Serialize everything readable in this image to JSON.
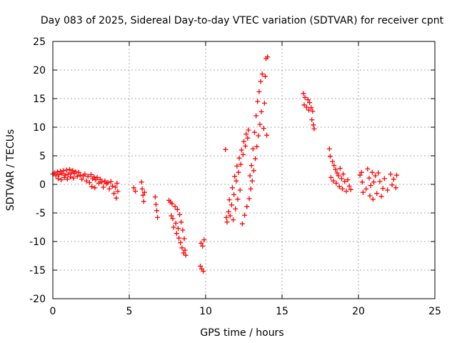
{
  "chart_data": {
    "type": "scatter",
    "title": "Day 083 of 2025, Sidereal Day-to-day VTEC variation (SDTVAR) for receiver cpnt",
    "xlabel": "GPS time / hours",
    "ylabel": "SDTVAR / TECUs",
    "xlim": [
      0,
      25
    ],
    "ylim": [
      -20,
      25
    ],
    "xticks": [
      0,
      5,
      10,
      15,
      20,
      25
    ],
    "yticks": [
      -20,
      -15,
      -10,
      -5,
      0,
      5,
      10,
      15,
      20,
      25
    ],
    "xtick_labels": [
      "0",
      "5",
      "10",
      "15",
      "20",
      "25"
    ],
    "ytick_labels": [
      "-20",
      "-15",
      "-10",
      "-5",
      "0",
      "5",
      "10",
      "15",
      "20",
      "25"
    ],
    "grid": true,
    "marker": "+",
    "color": "#ff0000",
    "series": [
      {
        "name": "SDTVAR",
        "points": [
          [
            0.0,
            1.8
          ],
          [
            0.1,
            2.0
          ],
          [
            0.2,
            1.5
          ],
          [
            0.3,
            2.2
          ],
          [
            0.35,
            1.0
          ],
          [
            0.4,
            1.7
          ],
          [
            0.5,
            2.3
          ],
          [
            0.55,
            0.8
          ],
          [
            0.6,
            1.9
          ],
          [
            0.7,
            2.4
          ],
          [
            0.75,
            1.2
          ],
          [
            0.8,
            1.6
          ],
          [
            0.9,
            2.5
          ],
          [
            0.95,
            0.9
          ],
          [
            1.0,
            1.8
          ],
          [
            1.1,
            2.6
          ],
          [
            1.15,
            1.3
          ],
          [
            1.2,
            2.0
          ],
          [
            1.3,
            2.4
          ],
          [
            1.35,
            1.1
          ],
          [
            1.4,
            1.9
          ],
          [
            1.5,
            2.2
          ],
          [
            1.6,
            1.4
          ],
          [
            1.7,
            2.1
          ],
          [
            1.8,
            1.6
          ],
          [
            1.9,
            0.9
          ],
          [
            2.0,
            1.5
          ],
          [
            2.1,
            1.8
          ],
          [
            2.2,
            0.6
          ],
          [
            2.3,
            1.4
          ],
          [
            2.4,
            0.3
          ],
          [
            2.5,
            1.7
          ],
          [
            2.55,
            -0.4
          ],
          [
            2.6,
            1.0
          ],
          [
            2.7,
            1.3
          ],
          [
            2.75,
            -0.6
          ],
          [
            2.8,
            0.8
          ],
          [
            2.9,
            1.2
          ],
          [
            3.0,
            0.2
          ],
          [
            3.1,
            0.9
          ],
          [
            3.2,
            0.4
          ],
          [
            3.3,
            -0.5
          ],
          [
            3.4,
            0.6
          ],
          [
            3.5,
            0.1
          ],
          [
            3.6,
            0.3
          ],
          [
            3.7,
            -0.8
          ],
          [
            3.8,
            0.5
          ],
          [
            3.9,
            -0.3
          ],
          [
            4.0,
            -1.6
          ],
          [
            4.1,
            -0.5
          ],
          [
            4.15,
            -2.4
          ],
          [
            4.2,
            0.2
          ],
          [
            4.25,
            -1.2
          ],
          [
            5.3,
            -0.6
          ],
          [
            5.4,
            -1.2
          ],
          [
            5.8,
            0.4
          ],
          [
            5.85,
            -0.8
          ],
          [
            5.9,
            -1.9
          ],
          [
            5.95,
            -3.0
          ],
          [
            6.0,
            -1.4
          ],
          [
            6.7,
            -2.2
          ],
          [
            6.75,
            -3.5
          ],
          [
            6.8,
            -4.6
          ],
          [
            6.85,
            -5.8
          ],
          [
            7.6,
            -2.8
          ],
          [
            7.7,
            -3.1
          ],
          [
            7.75,
            -5.5
          ],
          [
            7.8,
            -3.4
          ],
          [
            7.85,
            -6.0
          ],
          [
            7.9,
            -7.5
          ],
          [
            8.0,
            -3.9
          ],
          [
            8.05,
            -6.8
          ],
          [
            8.1,
            -8.6
          ],
          [
            8.15,
            -4.4
          ],
          [
            8.2,
            -7.7
          ],
          [
            8.25,
            -9.4
          ],
          [
            8.3,
            -5.3
          ],
          [
            8.35,
            -10.2
          ],
          [
            8.4,
            -6.6
          ],
          [
            8.45,
            -11.1
          ],
          [
            8.5,
            -8.0
          ],
          [
            8.55,
            -12.0
          ],
          [
            8.6,
            -9.5
          ],
          [
            8.65,
            -11.5
          ],
          [
            8.7,
            -12.4
          ],
          [
            9.65,
            -14.3
          ],
          [
            9.7,
            -10.3
          ],
          [
            9.75,
            -14.8
          ],
          [
            9.8,
            -10.8
          ],
          [
            9.85,
            -15.2
          ],
          [
            9.9,
            -9.7
          ],
          [
            11.3,
            6.1
          ],
          [
            11.35,
            -5.8
          ],
          [
            11.4,
            -6.6
          ],
          [
            11.5,
            -4.8
          ],
          [
            11.55,
            -2.7
          ],
          [
            11.6,
            -5.5
          ],
          [
            11.7,
            -3.6
          ],
          [
            11.75,
            -0.6
          ],
          [
            11.8,
            -6.2
          ],
          [
            11.85,
            -1.8
          ],
          [
            11.9,
            1.4
          ],
          [
            11.95,
            -4.3
          ],
          [
            12.0,
            0.6
          ],
          [
            12.05,
            3.2
          ],
          [
            12.1,
            -2.6
          ],
          [
            12.15,
            2.1
          ],
          [
            12.2,
            4.6
          ],
          [
            12.25,
            -1.0
          ],
          [
            12.3,
            3.5
          ],
          [
            12.35,
            6.0
          ],
          [
            12.4,
            -6.9
          ],
          [
            12.45,
            5.2
          ],
          [
            12.5,
            7.5
          ],
          [
            12.55,
            -5.4
          ],
          [
            12.6,
            6.7
          ],
          [
            12.65,
            8.8
          ],
          [
            12.7,
            -3.9
          ],
          [
            12.75,
            8.1
          ],
          [
            12.8,
            9.5
          ],
          [
            12.85,
            -2.5
          ],
          [
            12.9,
            1.5
          ],
          [
            12.95,
            -0.8
          ],
          [
            13.0,
            3.3
          ],
          [
            13.05,
            0.6
          ],
          [
            13.1,
            6.2
          ],
          [
            13.15,
            2.4
          ],
          [
            13.2,
            9.1
          ],
          [
            13.25,
            4.5
          ],
          [
            13.3,
            12.0
          ],
          [
            13.35,
            6.6
          ],
          [
            13.4,
            14.5
          ],
          [
            13.45,
            8.5
          ],
          [
            13.5,
            16.2
          ],
          [
            13.55,
            10.5
          ],
          [
            13.6,
            18.0
          ],
          [
            13.65,
            12.7
          ],
          [
            13.7,
            19.3
          ],
          [
            13.8,
            9.8
          ],
          [
            13.85,
            14.2
          ],
          [
            13.9,
            18.9
          ],
          [
            13.95,
            22.0
          ],
          [
            14.0,
            8.6
          ],
          [
            14.05,
            22.3
          ],
          [
            16.4,
            15.9
          ],
          [
            16.45,
            13.9
          ],
          [
            16.5,
            15.2
          ],
          [
            16.6,
            13.5
          ],
          [
            16.7,
            14.8
          ],
          [
            16.75,
            13.0
          ],
          [
            16.8,
            14.3
          ],
          [
            16.9,
            13.4
          ],
          [
            16.95,
            11.3
          ],
          [
            17.0,
            12.8
          ],
          [
            17.05,
            10.4
          ],
          [
            17.1,
            9.7
          ],
          [
            18.1,
            6.2
          ],
          [
            18.15,
            4.9
          ],
          [
            18.2,
            1.2
          ],
          [
            18.3,
            4.0
          ],
          [
            18.35,
            0.6
          ],
          [
            18.4,
            3.3
          ],
          [
            18.5,
            2.6
          ],
          [
            18.55,
            0.2
          ],
          [
            18.6,
            2.0
          ],
          [
            18.7,
            1.5
          ],
          [
            18.75,
            -0.4
          ],
          [
            18.8,
            2.8
          ],
          [
            18.9,
            1.0
          ],
          [
            18.95,
            -0.8
          ],
          [
            19.0,
            1.8
          ],
          [
            19.1,
            0.5
          ],
          [
            19.2,
            -1.2
          ],
          [
            19.3,
            0.8
          ],
          [
            19.4,
            -0.3
          ],
          [
            19.5,
            -0.9
          ],
          [
            20.1,
            1.6
          ],
          [
            20.2,
            2.1
          ],
          [
            20.25,
            0.4
          ],
          [
            20.3,
            -1.4
          ],
          [
            20.5,
            -0.8
          ],
          [
            20.6,
            2.7
          ],
          [
            20.7,
            1.1
          ],
          [
            20.75,
            -2.0
          ],
          [
            20.8,
            -0.2
          ],
          [
            20.9,
            2.1
          ],
          [
            20.95,
            -2.6
          ],
          [
            21.0,
            0.4
          ],
          [
            21.1,
            1.5
          ],
          [
            21.2,
            -1.6
          ],
          [
            21.3,
            2.0
          ],
          [
            21.4,
            0.5
          ],
          [
            21.5,
            -2.1
          ],
          [
            21.6,
            -0.7
          ],
          [
            21.7,
            1.0
          ],
          [
            21.9,
            -1.0
          ],
          [
            22.1,
            1.8
          ],
          [
            22.2,
            -0.1
          ],
          [
            22.3,
            0.9
          ],
          [
            22.45,
            -0.6
          ],
          [
            22.5,
            1.6
          ]
        ]
      }
    ]
  }
}
